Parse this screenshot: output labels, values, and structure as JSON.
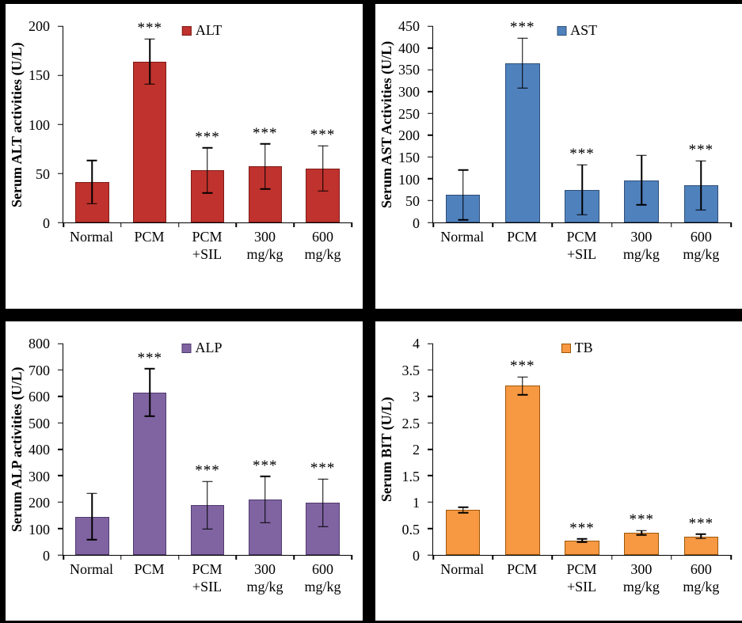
{
  "page": {
    "background": "#000000",
    "panel_background": "#FFFFFF"
  },
  "chart_data": [
    {
      "type": "bar",
      "title": "",
      "legend": "ALT",
      "ylabel": "Serum ALT activities (U/L)",
      "xlabel": "",
      "ylim": [
        0,
        200
      ],
      "ystep": 50,
      "grid": false,
      "legend_position": "top-center",
      "bar_color": "#C0322D",
      "bar_border": "#7E1B18",
      "categories": [
        "Normal",
        "PCM",
        "PCM\n+SIL",
        "300\nmg/kg",
        "600\nmg/kg"
      ],
      "values": [
        41,
        164,
        53,
        57,
        55
      ],
      "errors": [
        22,
        23,
        23,
        23,
        23
      ],
      "significance": [
        "",
        "***",
        "***",
        "***",
        "***"
      ]
    },
    {
      "type": "bar",
      "title": "",
      "legend": "AST",
      "ylabel": "Serum AST Activities (U/L)",
      "xlabel": "",
      "ylim": [
        0,
        450
      ],
      "ystep": 50,
      "grid": false,
      "legend_position": "top-center",
      "bar_color": "#4F81BD",
      "bar_border": "#2E4F77",
      "categories": [
        "Normal",
        "PCM",
        "PCM\n+SIL",
        "300\nmg/kg",
        "600\nmg/kg"
      ],
      "values": [
        63,
        365,
        75,
        97,
        85
      ],
      "errors": [
        57,
        57,
        57,
        57,
        56
      ],
      "significance": [
        "",
        "***",
        "***",
        "",
        "***"
      ]
    },
    {
      "type": "bar",
      "title": "",
      "legend": "ALP",
      "ylabel": "Serum ALP activities (U/L)",
      "xlabel": "",
      "ylim": [
        0,
        800
      ],
      "ystep": 100,
      "grid": false,
      "legend_position": "top-center",
      "bar_color": "#8064A2",
      "bar_border": "#503A6E",
      "categories": [
        "Normal",
        "PCM",
        "PCM\n+SIL",
        "300\nmg/kg",
        "600\nmg/kg"
      ],
      "values": [
        145,
        615,
        188,
        210,
        197
      ],
      "errors": [
        88,
        90,
        90,
        88,
        90
      ],
      "significance": [
        "",
        "***",
        "***",
        "***",
        "***"
      ]
    },
    {
      "type": "bar",
      "title": "",
      "legend": "TB",
      "ylabel": "Serum BIT (U/L)",
      "xlabel": "",
      "ylim": [
        0,
        4
      ],
      "ystep": 0.5,
      "grid": false,
      "legend_position": "top-center",
      "bar_color": "#F79843",
      "bar_border": "#9C5708",
      "categories": [
        "Normal",
        "PCM",
        "PCM\n+SIL",
        "300\nmg/kg",
        "600\nmg/kg"
      ],
      "values": [
        0.85,
        3.2,
        0.27,
        0.42,
        0.35
      ],
      "errors": [
        0.05,
        0.17,
        0.03,
        0.04,
        0.04
      ],
      "significance": [
        "",
        "***",
        "***",
        "***",
        "***"
      ]
    }
  ]
}
